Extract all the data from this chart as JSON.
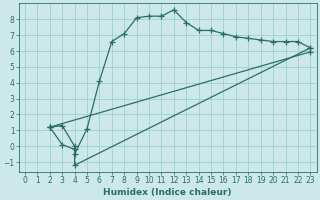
{
  "title": "",
  "xlabel": "Humidex (Indice chaleur)",
  "bg_color": "#cce8e8",
  "line_color": "#2a7060",
  "grid_color": "#9fcfcf",
  "xlim": [
    -0.5,
    23.5
  ],
  "ylim": [
    -1.6,
    9.0
  ],
  "xticks": [
    0,
    1,
    2,
    3,
    4,
    5,
    6,
    7,
    8,
    9,
    10,
    11,
    12,
    13,
    14,
    15,
    16,
    17,
    18,
    19,
    20,
    21,
    22,
    23
  ],
  "yticks": [
    -1,
    0,
    1,
    2,
    3,
    4,
    5,
    6,
    7,
    8
  ],
  "curve1_x": [
    2,
    3,
    4,
    4,
    5,
    6,
    7,
    8,
    9,
    10,
    11,
    12,
    13,
    14,
    15,
    16,
    17,
    18,
    19,
    20,
    21,
    22,
    23
  ],
  "curve1_y": [
    1.2,
    1.3,
    0.0,
    -0.5,
    1.1,
    4.1,
    6.6,
    7.1,
    8.1,
    8.2,
    8.2,
    8.6,
    7.8,
    7.3,
    7.3,
    7.1,
    6.9,
    6.8,
    6.7,
    6.6,
    6.6,
    6.6,
    6.2
  ],
  "curve2_x": [
    2,
    3,
    4,
    4,
    23
  ],
  "curve2_y": [
    1.2,
    0.1,
    -0.2,
    -1.2,
    6.2
  ],
  "curve3_x": [
    2,
    23
  ],
  "curve3_y": [
    1.2,
    5.95
  ],
  "marker": "+",
  "markersize": 4,
  "linewidth": 0.9
}
